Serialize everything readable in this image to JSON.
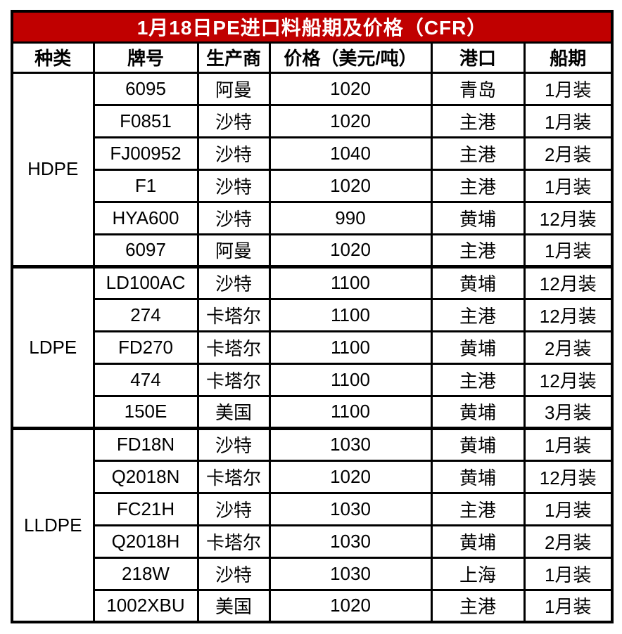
{
  "title": "1月18日PE进口料船期及价格（CFR）",
  "colors": {
    "title_bg": "#C00000",
    "title_text": "#FFFFFF",
    "border": "#000000",
    "cell_bg": "#FFFFFF",
    "cell_text": "#000000"
  },
  "table": {
    "headers": [
      "种类",
      "牌号",
      "生产商",
      "价格（美元/吨）",
      "港口",
      "船期"
    ],
    "groups": [
      {
        "category": "HDPE",
        "rows": [
          {
            "grade": "6095",
            "producer": "阿曼",
            "price": "1020",
            "port": "青岛",
            "shipment": "1月装"
          },
          {
            "grade": "F0851",
            "producer": "沙特",
            "price": "1020",
            "port": "主港",
            "shipment": "1月装"
          },
          {
            "grade": "FJ00952",
            "producer": "沙特",
            "price": "1040",
            "port": "主港",
            "shipment": "2月装"
          },
          {
            "grade": "F1",
            "producer": "沙特",
            "price": "1020",
            "port": "主港",
            "shipment": "1月装"
          },
          {
            "grade": "HYA600",
            "producer": "沙特",
            "price": "990",
            "port": "黄埔",
            "shipment": "12月装"
          },
          {
            "grade": "6097",
            "producer": "阿曼",
            "price": "1020",
            "port": "主港",
            "shipment": "1月装"
          }
        ]
      },
      {
        "category": "LDPE",
        "rows": [
          {
            "grade": "LD100AC",
            "producer": "沙特",
            "price": "1100",
            "port": "黄埔",
            "shipment": "12月装"
          },
          {
            "grade": "274",
            "producer": "卡塔尔",
            "price": "1100",
            "port": "主港",
            "shipment": "12月装"
          },
          {
            "grade": "FD270",
            "producer": "卡塔尔",
            "price": "1100",
            "port": "黄埔",
            "shipment": "2月装"
          },
          {
            "grade": "474",
            "producer": "卡塔尔",
            "price": "1100",
            "port": "主港",
            "shipment": "12月装"
          },
          {
            "grade": "150E",
            "producer": "美国",
            "price": "1100",
            "port": "黄埔",
            "shipment": "3月装"
          }
        ]
      },
      {
        "category": "LLDPE",
        "rows": [
          {
            "grade": "FD18N",
            "producer": "沙特",
            "price": "1030",
            "port": "黄埔",
            "shipment": "1月装"
          },
          {
            "grade": "Q2018N",
            "producer": "卡塔尔",
            "price": "1020",
            "port": "黄埔",
            "shipment": "12月装"
          },
          {
            "grade": "FC21H",
            "producer": "沙特",
            "price": "1030",
            "port": "主港",
            "shipment": "1月装"
          },
          {
            "grade": "Q2018H",
            "producer": "卡塔尔",
            "price": "1030",
            "port": "黄埔",
            "shipment": "2月装"
          },
          {
            "grade": "218W",
            "producer": "沙特",
            "price": "1030",
            "port": "上海",
            "shipment": "1月装"
          },
          {
            "grade": "1002XBU",
            "producer": "美国",
            "price": "1020",
            "port": "主港",
            "shipment": "1月装"
          }
        ]
      }
    ]
  },
  "chart_data": {
    "type": "table",
    "title": "1月18日PE进口料船期及价格（CFR）",
    "columns": [
      "种类",
      "牌号",
      "生产商",
      "价格（美元/吨）",
      "港口",
      "船期"
    ],
    "rows": [
      [
        "HDPE",
        "6095",
        "阿曼",
        1020,
        "青岛",
        "1月装"
      ],
      [
        "HDPE",
        "F0851",
        "沙特",
        1020,
        "主港",
        "1月装"
      ],
      [
        "HDPE",
        "FJ00952",
        "沙特",
        1040,
        "主港",
        "2月装"
      ],
      [
        "HDPE",
        "F1",
        "沙特",
        1020,
        "主港",
        "1月装"
      ],
      [
        "HDPE",
        "HYA600",
        "沙特",
        990,
        "黄埔",
        "12月装"
      ],
      [
        "HDPE",
        "6097",
        "阿曼",
        1020,
        "主港",
        "1月装"
      ],
      [
        "LDPE",
        "LD100AC",
        "沙特",
        1100,
        "黄埔",
        "12月装"
      ],
      [
        "LDPE",
        "274",
        "卡塔尔",
        1100,
        "主港",
        "12月装"
      ],
      [
        "LDPE",
        "FD270",
        "卡塔尔",
        1100,
        "黄埔",
        "2月装"
      ],
      [
        "LDPE",
        "474",
        "卡塔尔",
        1100,
        "主港",
        "12月装"
      ],
      [
        "LDPE",
        "150E",
        "美国",
        1100,
        "黄埔",
        "3月装"
      ],
      [
        "LLDPE",
        "FD18N",
        "沙特",
        1030,
        "黄埔",
        "1月装"
      ],
      [
        "LLDPE",
        "Q2018N",
        "卡塔尔",
        1020,
        "黄埔",
        "12月装"
      ],
      [
        "LLDPE",
        "FC21H",
        "沙特",
        1030,
        "主港",
        "1月装"
      ],
      [
        "LLDPE",
        "Q2018H",
        "卡塔尔",
        1030,
        "黄埔",
        "2月装"
      ],
      [
        "LLDPE",
        "218W",
        "沙特",
        1030,
        "上海",
        "1月装"
      ],
      [
        "LLDPE",
        "1002XBU",
        "美国",
        1020,
        "主港",
        "1月装"
      ]
    ]
  }
}
